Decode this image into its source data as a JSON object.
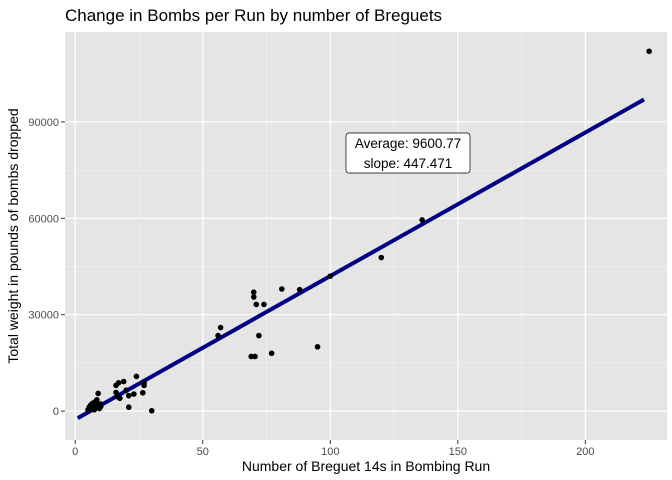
{
  "chart_data": {
    "type": "scatter",
    "title": "Change in Bombs per Run by number of Breguets",
    "xlabel": "Number of Breguet 14s in Bombing Run",
    "ylabel": "Total weight in pounds of bombs dropped",
    "xlim": [
      -4,
      232
    ],
    "ylim": [
      -9000,
      118000
    ],
    "x_ticks": [
      0,
      50,
      100,
      150,
      200
    ],
    "x_tick_labels": [
      "0",
      "50",
      "100",
      "150",
      "200"
    ],
    "y_ticks": [
      0,
      30000,
      60000,
      90000
    ],
    "y_tick_labels": [
      "0",
      "30000",
      "60000",
      "90000"
    ],
    "grid": true,
    "background": "#e5e5e5",
    "points": [
      {
        "x": 5,
        "y": 400
      },
      {
        "x": 5.5,
        "y": 1200
      },
      {
        "x": 6,
        "y": 1800
      },
      {
        "x": 6,
        "y": 600
      },
      {
        "x": 6.5,
        "y": 2200
      },
      {
        "x": 7,
        "y": 1000
      },
      {
        "x": 7,
        "y": 2500
      },
      {
        "x": 7.5,
        "y": 400
      },
      {
        "x": 8,
        "y": 1500
      },
      {
        "x": 8,
        "y": 3000
      },
      {
        "x": 8.5,
        "y": 3500
      },
      {
        "x": 9,
        "y": 2000
      },
      {
        "x": 9,
        "y": 5500
      },
      {
        "x": 9.5,
        "y": 800
      },
      {
        "x": 10,
        "y": 2200
      },
      {
        "x": 10,
        "y": 1400
      },
      {
        "x": 16,
        "y": 8000
      },
      {
        "x": 16,
        "y": 5800
      },
      {
        "x": 16.5,
        "y": 4500
      },
      {
        "x": 17,
        "y": 8800
      },
      {
        "x": 17.5,
        "y": 4000
      },
      {
        "x": 19,
        "y": 9200
      },
      {
        "x": 20,
        "y": 6500
      },
      {
        "x": 21,
        "y": 4800
      },
      {
        "x": 21,
        "y": 1200
      },
      {
        "x": 23,
        "y": 5300
      },
      {
        "x": 24,
        "y": 10800
      },
      {
        "x": 26.5,
        "y": 5700
      },
      {
        "x": 27,
        "y": 8000
      },
      {
        "x": 27,
        "y": 8800
      },
      {
        "x": 30,
        "y": 100
      },
      {
        "x": 56,
        "y": 23500
      },
      {
        "x": 57,
        "y": 26000
      },
      {
        "x": 69,
        "y": 17000
      },
      {
        "x": 70,
        "y": 37000
      },
      {
        "x": 70,
        "y": 35500
      },
      {
        "x": 70.5,
        "y": 17000
      },
      {
        "x": 71,
        "y": 33200
      },
      {
        "x": 72,
        "y": 23500
      },
      {
        "x": 74,
        "y": 33200
      },
      {
        "x": 77,
        "y": 18000
      },
      {
        "x": 81,
        "y": 38000
      },
      {
        "x": 88,
        "y": 37800
      },
      {
        "x": 95,
        "y": 20000
      },
      {
        "x": 100,
        "y": 42000
      },
      {
        "x": 120,
        "y": 47800
      },
      {
        "x": 136,
        "y": 59500
      },
      {
        "x": 225,
        "y": 112000
      }
    ],
    "fit_line": {
      "x": [
        1,
        223
      ],
      "y": [
        -2200,
        97000
      ],
      "color": "#000080"
    },
    "annotation": {
      "line1": "Average: 9600.77",
      "line2": "slope: 447.471",
      "x": 130,
      "y": 79500
    }
  }
}
